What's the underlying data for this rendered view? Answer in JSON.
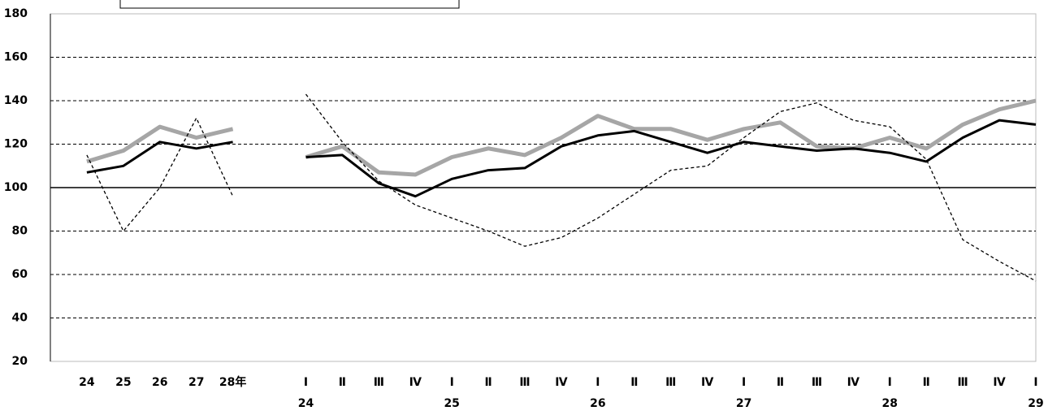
{
  "chart_data": {
    "type": "line",
    "categories": [
      "24",
      "25",
      "26",
      "27",
      "28年",
      null,
      "Ⅰ",
      "Ⅱ",
      "Ⅲ",
      "Ⅳ",
      "Ⅰ",
      "Ⅱ",
      "Ⅲ",
      "Ⅳ",
      "Ⅰ",
      "Ⅱ",
      "Ⅲ",
      "Ⅳ",
      "Ⅰ",
      "Ⅱ",
      "Ⅲ",
      "Ⅳ",
      "Ⅰ",
      "Ⅱ",
      "Ⅲ",
      "Ⅳ",
      "Ⅰ"
    ],
    "sub_labels": [
      null,
      null,
      null,
      null,
      null,
      null,
      "24",
      null,
      null,
      null,
      "25",
      null,
      null,
      null,
      "26",
      null,
      null,
      null,
      "27",
      null,
      null,
      null,
      "28",
      null,
      null,
      null,
      "29"
    ],
    "series": [
      {
        "color": "#a6a6a6",
        "style": "thick",
        "values": [
          112,
          117,
          128,
          123,
          127,
          null,
          114,
          119,
          107,
          106,
          114,
          118,
          115,
          123,
          133,
          127,
          127,
          122,
          127,
          130,
          119,
          118,
          123,
          118,
          129,
          136,
          140
        ]
      },
      {
        "color": "#000000",
        "style": "solid",
        "values": [
          107,
          110,
          121,
          118,
          121,
          null,
          114,
          115,
          102,
          96,
          104,
          108,
          109,
          119,
          124,
          126,
          121,
          116,
          121,
          119,
          117,
          118,
          116,
          112,
          123,
          131,
          129
        ]
      },
      {
        "color": "#000000",
        "style": "dashed",
        "values": [
          115,
          80,
          100,
          132,
          96,
          null,
          143,
          121,
          103,
          92,
          86,
          80,
          73,
          77,
          86,
          97,
          108,
          110,
          123,
          135,
          139,
          131,
          128,
          113,
          76,
          66,
          57
        ]
      }
    ],
    "ylim": [
      20,
      180
    ],
    "yticks": [
      20,
      40,
      60,
      80,
      100,
      120,
      140,
      160,
      180
    ],
    "grid": true,
    "baseline": 100
  }
}
